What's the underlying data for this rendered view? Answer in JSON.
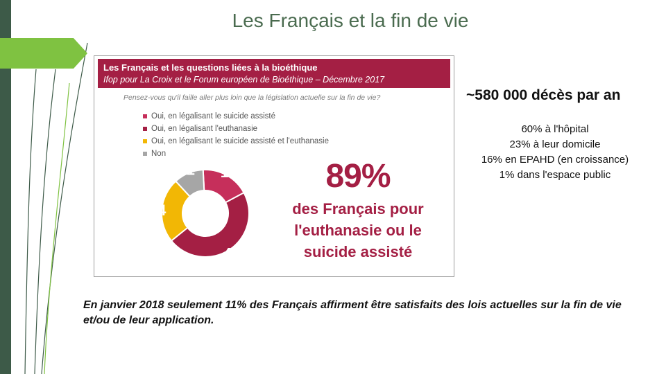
{
  "slide": {
    "title": "Les Français et la fin de vie",
    "colors": {
      "sidebar": "#3d5a48",
      "tab": "#7fc241",
      "accent": "#a41f44"
    }
  },
  "figure": {
    "header_title": "Les Français et les questions liées à la bioéthique",
    "header_subtitle": "Ifop pour La Croix et le Forum européen de Bioéthique – Décembre 2017",
    "question": "Pensez-vous qu'il faille aller plus loin que la législation actuelle sur la fin de vie?",
    "big_percent": "89%",
    "big_text": [
      "des Français pour",
      "l'euthanasie ou le",
      "suicide assisté"
    ]
  },
  "chart_data": {
    "type": "pie",
    "donut": true,
    "categories": [
      "Oui, en légalisant le suicide assisté",
      "Oui, en légalisant l'euthanasie",
      "Oui, en légalisant le suicide assisté et l'euthanasie",
      "Non"
    ],
    "values": [
      18,
      47,
      24,
      11
    ],
    "colors": [
      "#c62f5b",
      "#a41f44",
      "#f2b705",
      "#a6a6a6"
    ],
    "legend_position": "top-left"
  },
  "side": {
    "headline": "~580 000 décès par an",
    "stats": [
      "60% à l'hôpital",
      "23% à leur domicile",
      "16% en EPAHD (en croissance)",
      "1% dans l'espace public"
    ]
  },
  "footnote": "En janvier 2018 seulement 11% des Français affirment être  satisfaits des lois actuelles sur la fin de vie et/ou  de leur application."
}
